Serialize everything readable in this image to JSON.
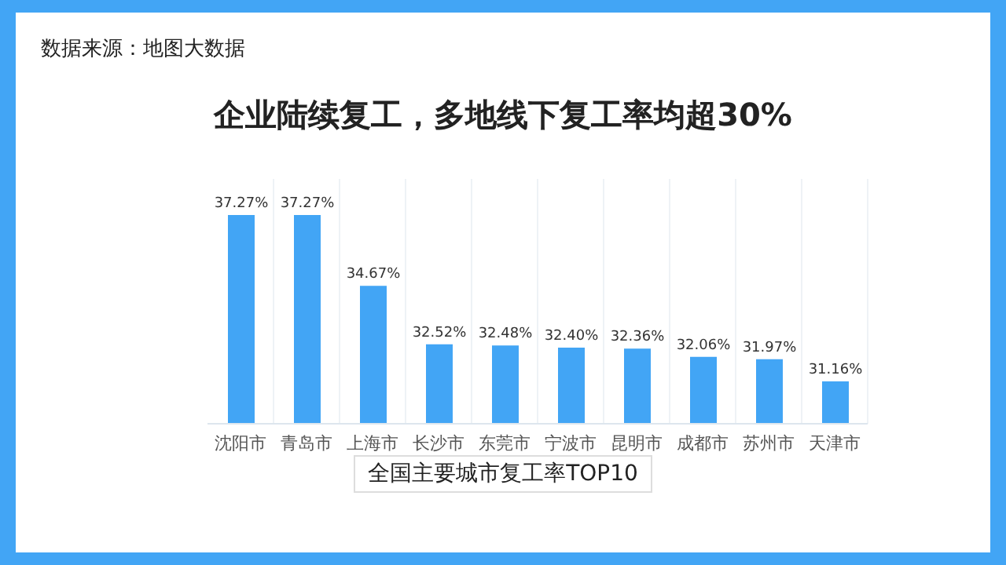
{
  "chart_data": {
    "type": "bar",
    "title": "企业陆续复工，多地线下复工率均超30%",
    "subtitle": "全国主要城市复工率TOP10",
    "annotations": [
      "数据来源：地图大数据"
    ],
    "categories": [
      "沈阳市",
      "青岛市",
      "上海市",
      "长沙市",
      "东莞市",
      "宁波市",
      "昆明市",
      "成都市",
      "苏州市",
      "天津市"
    ],
    "values": [
      37.27,
      37.27,
      34.67,
      32.52,
      32.48,
      32.4,
      32.36,
      32.06,
      31.97,
      31.16
    ],
    "value_labels": [
      "37.27%",
      "37.27%",
      "34.67%",
      "32.52%",
      "32.48%",
      "32.40%",
      "32.36%",
      "32.06%",
      "31.97%",
      "31.16%"
    ],
    "color": "#42a5f5",
    "ylim": [
      29.6,
      38.6
    ],
    "tick_labels": "x",
    "grid": "x"
  }
}
